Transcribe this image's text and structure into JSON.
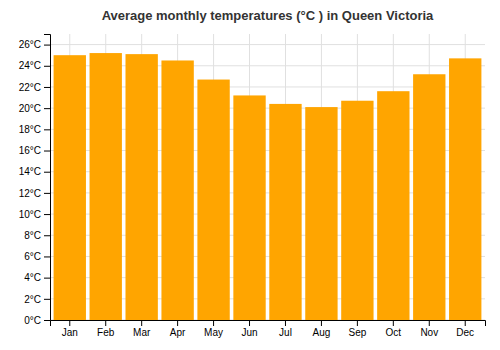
{
  "chart_data": {
    "type": "bar",
    "title": "Average monthly temperatures (°C ) in Queen Victoria",
    "categories": [
      "Jan",
      "Feb",
      "Mar",
      "Apr",
      "May",
      "Jun",
      "Jul",
      "Aug",
      "Sep",
      "Oct",
      "Nov",
      "Dec"
    ],
    "values": [
      25.0,
      25.2,
      25.1,
      24.5,
      22.7,
      21.2,
      20.4,
      20.1,
      20.7,
      21.6,
      23.2,
      24.7
    ],
    "color": "#FFA500",
    "ylim": [
      0,
      27
    ],
    "yticks": [
      {
        "value": 0,
        "label": "0°C"
      },
      {
        "value": 2,
        "label": "2°C"
      },
      {
        "value": 4,
        "label": "4°C"
      },
      {
        "value": 6,
        "label": "6°C"
      },
      {
        "value": 8,
        "label": "8°C"
      },
      {
        "value": 10,
        "label": "10°C"
      },
      {
        "value": 12,
        "label": "12°C"
      },
      {
        "value": 14,
        "label": "14°C"
      },
      {
        "value": 16,
        "label": "16°C"
      },
      {
        "value": 18,
        "label": "18°C"
      },
      {
        "value": 20,
        "label": "20°C"
      },
      {
        "value": 22,
        "label": "22°C"
      },
      {
        "value": 24,
        "label": "24°C"
      },
      {
        "value": 26,
        "label": "26°C"
      }
    ],
    "grid": true
  }
}
